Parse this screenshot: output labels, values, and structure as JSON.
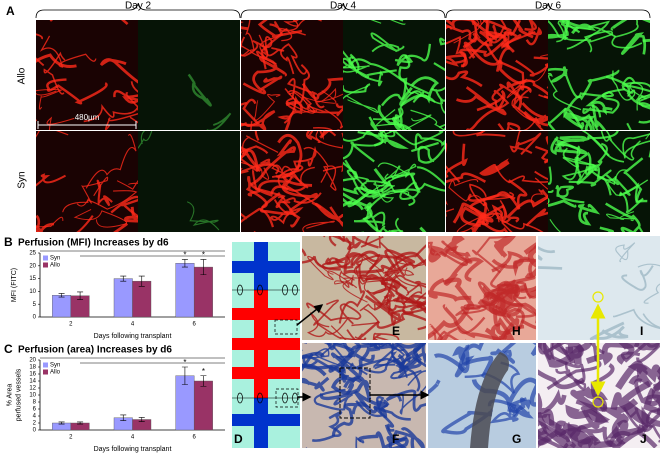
{
  "panel_labels": [
    "A",
    "B",
    "C",
    "D",
    "E",
    "F",
    "G",
    "H",
    "I",
    "J"
  ],
  "day_headers": [
    "Day 2",
    "Day 4",
    "Day 6"
  ],
  "row_labels": [
    "Allo",
    "Syn"
  ],
  "scale_bar": "480µm",
  "chart_data": [
    {
      "type": "bar",
      "title": "Perfusion (MFI) Increases by d6",
      "ylabel": [
        "MFI (FITC)"
      ],
      "xlabel": "Days following transplant",
      "categories": [
        "2",
        "4",
        "6"
      ],
      "series": [
        {
          "name": "Syn",
          "color": "#9999ff",
          "values": [
            8.5,
            15,
            21
          ],
          "errors": [
            0.7,
            1,
            1.5
          ]
        },
        {
          "name": "Allo",
          "color": "#993366",
          "values": [
            8.3,
            14,
            19.5
          ],
          "errors": [
            1.5,
            2,
            3
          ]
        }
      ],
      "annotations": [
        "*",
        "*"
      ],
      "ylim": [
        0,
        25
      ],
      "yticks": [
        0,
        5,
        10,
        15,
        20,
        25
      ],
      "grid": false,
      "legend": "upper left"
    },
    {
      "type": "bar",
      "title": "Perfusion (area) Increases by d6",
      "ylabel": [
        "% Area",
        "perfused vessels"
      ],
      "xlabel": "Days following transplant",
      "categories": [
        "2",
        "4",
        "6"
      ],
      "series": [
        {
          "name": "Syn",
          "color": "#9999ff",
          "values": [
            2,
            3.5,
            15.5
          ],
          "errors": [
            0.3,
            0.8,
            2.5
          ]
        },
        {
          "name": "Allo",
          "color": "#993366",
          "values": [
            2,
            3,
            14
          ],
          "errors": [
            0.3,
            0.6,
            1.5
          ]
        }
      ],
      "annotations": [
        "*",
        "*"
      ],
      "ylim": [
        0,
        20
      ],
      "yticks": [
        0,
        2,
        4,
        6,
        8,
        10,
        12,
        14,
        16,
        18,
        20
      ],
      "grid": false,
      "legend": "upper left"
    }
  ]
}
